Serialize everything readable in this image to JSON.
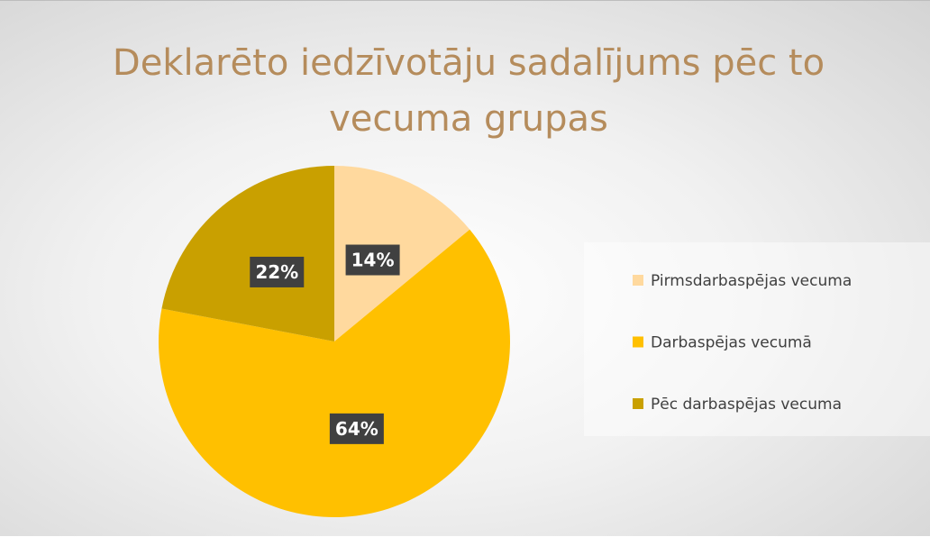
{
  "chart_data": {
    "type": "pie",
    "title": "Deklarēto iedzīvotāju sadalījums pēc to vecuma grupas",
    "categories": [
      "Pirmsdarbaspējas vecuma",
      "Darbaspējas vecumā",
      "Pēc darbaspējas vecuma"
    ],
    "values": [
      14,
      64,
      22
    ],
    "value_labels": [
      "14%",
      "64%",
      "22%"
    ],
    "colors": [
      "#ffd99e",
      "#ffc000",
      "#c9a000"
    ],
    "legend": "right"
  }
}
